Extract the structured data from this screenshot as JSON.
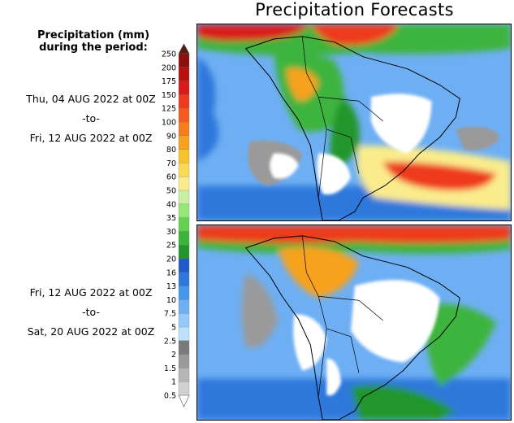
{
  "title": "Precipitation Forecasts",
  "legend": {
    "header_line1": "Precipitation (mm)",
    "header_line2": "during the period:",
    "units": "mm",
    "levels": [
      "250",
      "200",
      "175",
      "150",
      "125",
      "100",
      "90",
      "80",
      "70",
      "60",
      "50",
      "40",
      "35",
      "30",
      "25",
      "20",
      "16",
      "13",
      "10",
      "7.5",
      "5",
      "2.5",
      "2",
      "1.5",
      "1",
      "0.5"
    ],
    "colors": [
      "#5a1a10",
      "#8c1010",
      "#b81010",
      "#d81a1a",
      "#ee3a1e",
      "#f55a1e",
      "#f57d1e",
      "#f7a21e",
      "#f8c22e",
      "#fad956",
      "#faec8c",
      "#c8f0a0",
      "#96e678",
      "#64d250",
      "#3cb43c",
      "#22962a",
      "#1e5ac8",
      "#2e78dc",
      "#4696ec",
      "#6eaff4",
      "#96c8fa",
      "#bee1fc",
      "#7a7a7a",
      "#9a9a9a",
      "#b6b6b6",
      "#d2d2d2",
      "#ffffff"
    ]
  },
  "periods": [
    {
      "start": "Thu, 04 AUG 2022 at 00Z",
      "separator": "-to-",
      "end": "Fri, 12 AUG 2022 at 00Z"
    },
    {
      "start": "Fri, 12 AUG 2022 at 00Z",
      "separator": "-to-",
      "end": "Sat, 20 AUG 2022 at 00Z"
    }
  ],
  "maps": {
    "region": "South America",
    "ocean_color": "#6eaff4",
    "deep_ocean_color": "#2e78dc",
    "dry_color": "#ffffff",
    "light_rain_color": "#9a9a9a",
    "heavy_color": "#ee3a1e",
    "moderate_color": "#3cb43c",
    "border_color": "#000000"
  }
}
